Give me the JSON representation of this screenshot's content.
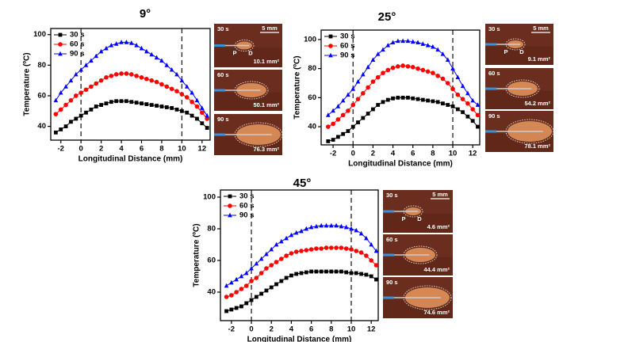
{
  "chart_data": [
    {
      "type": "line",
      "title": "9°",
      "x_label": "Longitudinal Distance (mm)",
      "y_label": "Temperature (ºC)",
      "xlim": [
        -3,
        12.8
      ],
      "ylim": [
        31,
        104
      ],
      "xticks": [
        -2,
        0,
        2,
        4,
        6,
        8,
        10,
        12
      ],
      "yticks": [
        40,
        60,
        80,
        100
      ],
      "vlines": [
        0,
        10
      ],
      "x": [
        -2.5,
        -2,
        -1.5,
        -1,
        -0.5,
        0,
        0.5,
        1,
        1.5,
        2,
        2.5,
        3,
        3.5,
        4,
        4.5,
        5,
        5.5,
        6,
        6.5,
        7,
        7.5,
        8,
        8.5,
        9,
        9.5,
        10,
        10.5,
        11,
        11.5,
        12,
        12.5
      ],
      "series": [
        {
          "name": "30 s",
          "color": "#000000",
          "marker": "square",
          "values": [
            36,
            38,
            40,
            43,
            45,
            47,
            49,
            51,
            53,
            54,
            55,
            56,
            56.5,
            56.5,
            56.5,
            56,
            55.5,
            55,
            54.5,
            54,
            53.5,
            53,
            52.5,
            52,
            51,
            50,
            49,
            47,
            45,
            42,
            39
          ]
        },
        {
          "name": "60 s",
          "color": "#ff0000",
          "marker": "circle",
          "values": [
            48,
            51,
            54,
            57,
            60,
            62,
            64,
            66,
            68,
            70,
            72,
            73,
            74,
            74.5,
            74.5,
            74,
            73,
            72,
            71,
            70,
            69,
            67.5,
            66,
            64.5,
            63,
            61,
            59,
            56,
            53,
            49,
            45
          ]
        },
        {
          "name": "90 s",
          "color": "#0000ff",
          "marker": "triangle",
          "values": [
            57,
            62,
            66,
            70,
            74,
            77,
            80,
            83,
            86,
            89,
            91,
            93,
            94,
            95,
            95,
            94.5,
            93,
            91,
            89,
            87,
            85,
            83,
            80,
            77,
            74,
            70,
            66,
            62,
            57,
            52,
            47
          ]
        }
      ],
      "insets": [
        {
          "label": "30 s",
          "area": "10.1 mm²"
        },
        {
          "label": "60 s",
          "area": "50.1 mm²"
        },
        {
          "label": "90 s",
          "area": "76.3 mm²"
        }
      ],
      "scale_bar": "5 mm",
      "markers": [
        "P",
        "D"
      ]
    },
    {
      "type": "line",
      "title": "25°",
      "x_label": "Longitudinal Distance (mm)",
      "y_label": "Temperature (ºC)",
      "xlim": [
        -3.2,
        12.7
      ],
      "ylim": [
        27.5,
        106.5
      ],
      "xticks": [
        -2,
        0,
        2,
        4,
        6,
        8,
        10,
        12
      ],
      "yticks": [
        40,
        60,
        80,
        100
      ],
      "vlines": [
        0,
        10
      ],
      "x": [
        -2.5,
        -2,
        -1.5,
        -1,
        -0.5,
        0,
        0.5,
        1,
        1.5,
        2,
        2.5,
        3,
        3.5,
        4,
        4.5,
        5,
        5.5,
        6,
        6.5,
        7,
        7.5,
        8,
        8.5,
        9,
        9.5,
        10,
        10.5,
        11,
        11.5,
        12,
        12.5
      ],
      "series": [
        {
          "name": "30 s",
          "color": "#000000",
          "marker": "square",
          "values": [
            30,
            31,
            33,
            35,
            37,
            40,
            43,
            46,
            49,
            52,
            55,
            57,
            58.5,
            59.5,
            60,
            60,
            60,
            59.5,
            59,
            58.5,
            58,
            57.5,
            57,
            56,
            55,
            54,
            52,
            50,
            47,
            44,
            40
          ]
        },
        {
          "name": "60 s",
          "color": "#ff0000",
          "marker": "circle",
          "values": [
            40,
            42,
            45,
            48,
            51,
            55,
            59,
            63,
            67,
            71,
            74,
            77,
            79,
            80.5,
            81.5,
            82,
            81.5,
            81,
            80,
            79,
            78,
            77,
            75,
            73,
            70,
            66,
            62,
            59,
            56,
            52,
            48
          ]
        },
        {
          "name": "90 s",
          "color": "#0000ff",
          "marker": "triangle",
          "values": [
            48,
            51,
            54,
            58,
            62,
            66,
            71,
            76,
            81,
            86,
            90,
            93,
            96,
            98,
            99,
            99,
            99,
            98.5,
            98,
            97,
            96,
            95,
            93,
            90,
            86,
            80,
            74,
            68,
            63,
            58,
            55
          ]
        }
      ],
      "insets": [
        {
          "label": "30 s",
          "area": "9.1 mm²"
        },
        {
          "label": "60 s",
          "area": "54.2 mm²"
        },
        {
          "label": "90 s",
          "area": "78.1 mm²"
        }
      ],
      "scale_bar": "5 mm",
      "markers": [
        "P",
        "D"
      ]
    },
    {
      "type": "line",
      "title": "45°",
      "x_label": "Longitudinal Distance (mm)",
      "y_label": "Temperature (ºC)",
      "xlim": [
        -3.1,
        12.7
      ],
      "ylim": [
        22,
        104.5
      ],
      "xticks": [
        -2,
        0,
        2,
        4,
        6,
        8,
        10,
        12
      ],
      "yticks": [
        40,
        60,
        80,
        100
      ],
      "vlines": [
        0,
        10
      ],
      "x": [
        -2.5,
        -2,
        -1.5,
        -1,
        -0.5,
        0,
        0.5,
        1,
        1.5,
        2,
        2.5,
        3,
        3.5,
        4,
        4.5,
        5,
        5.5,
        6,
        6.5,
        7,
        7.5,
        8,
        8.5,
        9,
        9.5,
        10,
        10.5,
        11,
        11.5,
        12,
        12.5
      ],
      "series": [
        {
          "name": "30 s",
          "color": "#000000",
          "marker": "square",
          "values": [
            28,
            29,
            30,
            31,
            33,
            35,
            37,
            39,
            41,
            43,
            45,
            47,
            49,
            50.5,
            51.5,
            52,
            52.5,
            53,
            53,
            53,
            53,
            53,
            53,
            53,
            52.5,
            52,
            52,
            51.5,
            51,
            50,
            48
          ]
        },
        {
          "name": "60 s",
          "color": "#ff0000",
          "marker": "circle",
          "values": [
            37,
            38,
            40,
            42,
            44,
            47,
            49,
            52,
            55,
            57,
            59,
            61,
            63,
            64.5,
            65.5,
            66,
            66.5,
            67,
            67.5,
            67.5,
            68,
            68,
            68,
            68,
            67.5,
            67,
            66,
            65,
            63,
            60,
            57
          ]
        },
        {
          "name": "90 s",
          "color": "#0000ff",
          "marker": "triangle",
          "values": [
            44,
            46,
            48,
            50,
            52,
            55,
            58,
            61,
            64,
            67,
            70,
            72,
            74,
            76,
            77.5,
            78.5,
            80,
            81,
            81.5,
            82,
            82,
            82,
            82,
            81.5,
            81,
            80,
            79,
            77,
            74,
            70,
            66
          ]
        }
      ],
      "insets": [
        {
          "label": "30 s",
          "area": "4.6 mm²"
        },
        {
          "label": "60 s",
          "area": "44.4 mm²"
        },
        {
          "label": "90 s",
          "area": "74.6 mm²"
        }
      ],
      "scale_bar": "5 mm",
      "markers": [
        "P",
        "D"
      ]
    }
  ]
}
